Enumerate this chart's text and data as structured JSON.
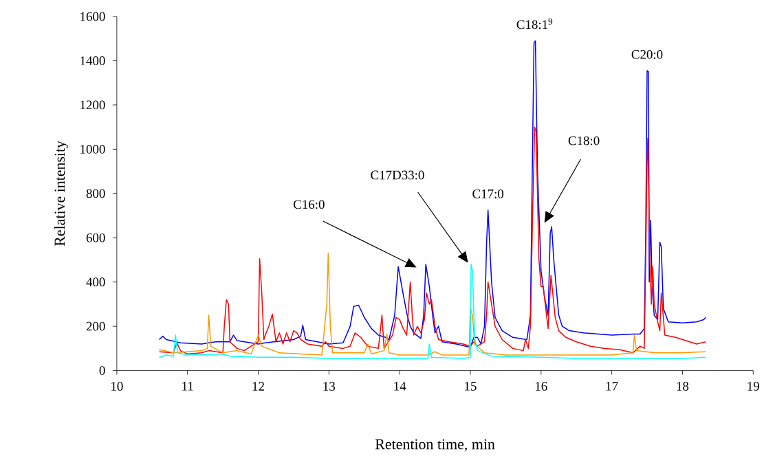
{
  "chart_data": {
    "type": "line",
    "xlabel": "Retention time, min",
    "ylabel": "Relative intensity",
    "xlim": [
      10,
      19
    ],
    "xticks": [
      10,
      11,
      12,
      13,
      14,
      15,
      16,
      17,
      18,
      19
    ],
    "ylim": [
      0,
      1600
    ],
    "yticks": [
      0,
      200,
      400,
      600,
      800,
      1000,
      1200,
      1400,
      1600
    ],
    "series": [
      {
        "color": "#0000ff",
        "x": [
          10.6,
          10.65,
          10.7,
          10.9,
          11.2,
          11.3,
          11.4,
          11.6,
          11.65,
          11.7,
          12.0,
          12.1,
          12.5,
          12.6,
          12.63,
          12.67,
          13.0,
          13.2,
          13.3,
          13.35,
          13.42,
          13.5,
          13.6,
          13.7,
          13.8,
          13.85,
          13.93,
          13.98,
          14.03,
          14.1,
          14.15,
          14.2,
          14.3,
          14.34,
          14.37,
          14.42,
          14.47,
          14.5,
          14.55,
          14.6,
          14.8,
          15.0,
          15.05,
          15.1,
          15.15,
          15.2,
          15.23,
          15.25,
          15.3,
          15.35,
          15.45,
          15.6,
          15.8,
          15.85,
          15.88,
          15.9,
          15.92,
          15.95,
          16.0,
          16.05,
          16.1,
          16.13,
          16.15,
          16.18,
          16.25,
          16.3,
          16.4,
          16.6,
          17.0,
          17.3,
          17.4,
          17.46,
          17.48,
          17.5,
          17.52,
          17.53,
          17.55,
          17.57,
          17.6,
          17.65,
          17.68,
          17.7,
          17.73,
          17.8,
          18.0,
          18.2,
          18.3,
          18.33
        ],
        "values": [
          140,
          155,
          140,
          125,
          120,
          125,
          130,
          130,
          160,
          135,
          120,
          125,
          140,
          155,
          205,
          140,
          120,
          125,
          200,
          290,
          295,
          240,
          190,
          160,
          150,
          140,
          250,
          470,
          380,
          260,
          200,
          170,
          145,
          250,
          480,
          380,
          240,
          170,
          200,
          130,
          120,
          105,
          150,
          150,
          120,
          200,
          580,
          725,
          400,
          240,
          180,
          150,
          140,
          250,
          1000,
          1480,
          1490,
          900,
          450,
          330,
          250,
          620,
          650,
          500,
          250,
          200,
          180,
          170,
          160,
          165,
          165,
          190,
          600,
          1355,
          1350,
          400,
          680,
          400,
          250,
          230,
          580,
          560,
          280,
          220,
          215,
          220,
          230,
          240
        ]
      },
      {
        "color": "#ff0000",
        "x": [
          10.6,
          10.8,
          10.85,
          10.9,
          11.0,
          11.2,
          11.3,
          11.5,
          11.52,
          11.55,
          11.58,
          11.6,
          11.7,
          11.8,
          11.9,
          12.0,
          12.02,
          12.05,
          12.08,
          12.1,
          12.15,
          12.2,
          12.25,
          12.3,
          12.35,
          12.4,
          12.45,
          12.5,
          12.55,
          12.6,
          12.7,
          12.9,
          12.95,
          13.0,
          13.2,
          13.3,
          13.37,
          13.45,
          13.55,
          13.7,
          13.75,
          13.78,
          13.9,
          13.95,
          14.0,
          14.05,
          14.1,
          14.15,
          14.18,
          14.2,
          14.25,
          14.3,
          14.35,
          14.38,
          14.42,
          14.45,
          14.5,
          14.55,
          14.7,
          14.9,
          15.0,
          15.05,
          15.1,
          15.2,
          15.23,
          15.25,
          15.3,
          15.35,
          15.45,
          15.6,
          15.75,
          15.78,
          15.82,
          15.85,
          15.88,
          15.91,
          15.93,
          15.97,
          16.0,
          16.03,
          16.07,
          16.1,
          16.14,
          16.2,
          16.25,
          16.35,
          16.5,
          16.7,
          16.9,
          17.1,
          17.3,
          17.4,
          17.46,
          17.48,
          17.5,
          17.51,
          17.54,
          17.56,
          17.58,
          17.6,
          17.65,
          17.68,
          17.7,
          17.72,
          17.75,
          17.9,
          18.1,
          18.2,
          18.33
        ],
        "values": [
          85,
          80,
          125,
          90,
          75,
          80,
          90,
          80,
          200,
          320,
          300,
          130,
          100,
          90,
          110,
          130,
          505,
          350,
          140,
          160,
          200,
          255,
          130,
          170,
          120,
          170,
          130,
          180,
          170,
          140,
          120,
          110,
          130,
          110,
          100,
          110,
          170,
          150,
          110,
          100,
          250,
          100,
          160,
          240,
          230,
          190,
          160,
          400,
          240,
          160,
          200,
          170,
          230,
          350,
          300,
          320,
          200,
          140,
          130,
          120,
          110,
          130,
          110,
          130,
          250,
          400,
          300,
          200,
          140,
          100,
          90,
          140,
          100,
          200,
          700,
          1100,
          1080,
          500,
          380,
          380,
          270,
          190,
          430,
          240,
          180,
          150,
          130,
          110,
          100,
          95,
          80,
          110,
          100,
          500,
          950,
          1050,
          500,
          300,
          470,
          300,
          220,
          180,
          350,
          280,
          160,
          150,
          130,
          120,
          130
        ]
      },
      {
        "color": "#ff9900",
        "x": [
          10.6,
          10.8,
          11.0,
          11.2,
          11.28,
          11.3,
          11.33,
          11.5,
          11.7,
          11.9,
          12.0,
          12.05,
          12.3,
          12.6,
          12.9,
          12.97,
          12.99,
          13.02,
          13.05,
          13.5,
          13.55,
          13.6,
          13.78,
          13.82,
          13.85,
          14.0,
          14.4,
          14.5,
          14.6,
          14.98,
          15.0,
          15.03,
          15.06,
          15.2,
          15.5,
          16.0,
          16.5,
          17.0,
          17.3,
          17.32,
          17.35,
          17.6,
          18.0,
          18.33
        ],
        "values": [
          95,
          80,
          85,
          90,
          100,
          250,
          110,
          80,
          90,
          75,
          160,
          110,
          80,
          75,
          70,
          300,
          530,
          200,
          80,
          80,
          120,
          75,
          90,
          165,
          80,
          70,
          70,
          85,
          70,
          70,
          280,
          250,
          120,
          80,
          70,
          70,
          70,
          70,
          80,
          160,
          90,
          80,
          80,
          85
        ]
      },
      {
        "color": "#00ffff",
        "x": [
          10.6,
          10.7,
          10.8,
          10.83,
          10.86,
          11.0,
          11.5,
          11.6,
          12.0,
          12.5,
          13.0,
          13.5,
          14.0,
          14.4,
          14.42,
          14.45,
          14.9,
          15.0,
          15.01,
          15.03,
          15.06,
          15.1,
          15.3,
          16.0,
          16.5,
          17.0,
          17.5,
          18.0,
          18.33
        ],
        "values": [
          60,
          70,
          65,
          160,
          80,
          70,
          75,
          65,
          60,
          60,
          55,
          55,
          55,
          55,
          120,
          60,
          55,
          60,
          480,
          450,
          150,
          90,
          65,
          60,
          55,
          55,
          55,
          55,
          60
        ]
      }
    ],
    "annotations": [
      "C16:0",
      "C17D33:0",
      {
        "text": "C17:0",
        "x": 15.25,
        "y": 725
      },
      {
        "text": "C18:1$^{9}$",
        "x": 15.91,
        "y": 1490
      },
      "C18:0",
      {
        "text": "C20:0",
        "x": 17.5,
        "y": 1355
      }
    ]
  }
}
